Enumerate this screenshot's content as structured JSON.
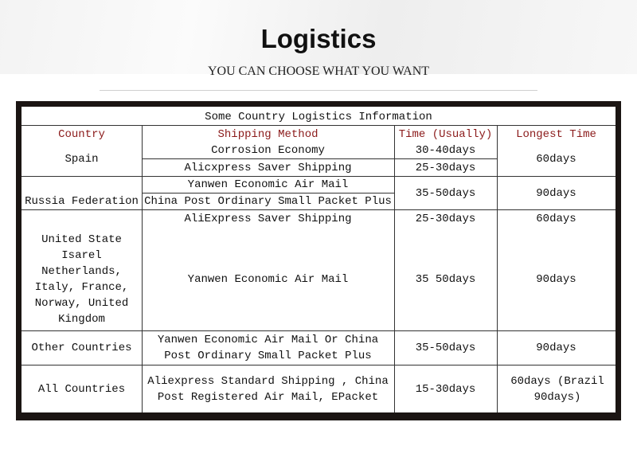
{
  "header": {
    "title": "Logistics",
    "subtitle": "YOU CAN CHOOSE WHAT YOU WANT"
  },
  "table": {
    "caption": "Some Country Logistics Information",
    "columns": [
      "Country",
      "Shipping Method",
      "Time (Usually)",
      "Longest Time"
    ],
    "rows": [
      {
        "country": "Spain",
        "methods": [
          "Corrosion Economy",
          "Alicxpress Saver Shipping"
        ],
        "times": [
          "30-40days",
          "25-30days"
        ],
        "longest": "60days"
      },
      {
        "country": "Russia Federation",
        "methods": [
          "Yanwen Economic Air Mail",
          "China Post Ordinary Small Packet Plus"
        ],
        "times": [
          "35-50days"
        ],
        "longest": "90days"
      },
      {
        "country": "United State Isarel Netherlands, Italy, France, Norway, United Kingdom",
        "methods": [
          "AliExpress Saver Shipping",
          "Yanwen Economic Air Mail"
        ],
        "times": [
          "25-30days",
          "35 50days"
        ],
        "longest": [
          "60days",
          "90days"
        ]
      },
      {
        "country": "Other Countries",
        "methods": [
          "Yanwen Economic Air Mail Or China Post Ordinary Small Packet Plus"
        ],
        "times": [
          "35-50days"
        ],
        "longest": "90days"
      },
      {
        "country": "All Countries",
        "methods": [
          "Aliexpress Standard Shipping , China Post Registered Air Mail, EPacket"
        ],
        "times": [
          "15-30days"
        ],
        "longest": "60days (Brazil 90days)"
      }
    ]
  },
  "colors": {
    "header_text": "#8b1a1a",
    "frame": "#1b1513"
  }
}
